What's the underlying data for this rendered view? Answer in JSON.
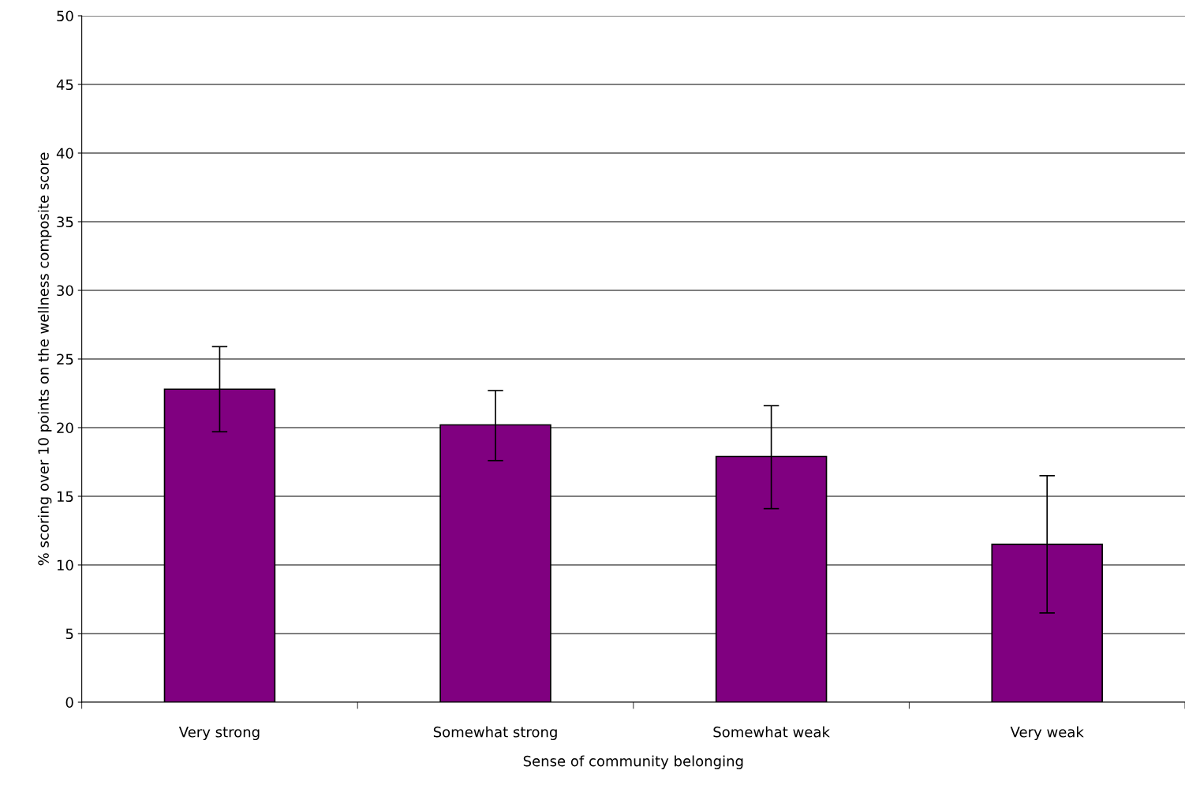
{
  "chart_data": {
    "type": "bar",
    "xlabel": "Sense of community belonging",
    "ylabel": "% scoring over 10 points on the wellness composite score",
    "categories": [
      "Very strong",
      "Somewhat strong",
      "Somewhat weak",
      "Very weak"
    ],
    "series": [
      {
        "color": "#800080",
        "values": [
          22.8,
          20.2,
          17.9,
          11.5
        ],
        "errors": [
          [
            19.7,
            25.9
          ],
          [
            17.6,
            22.7
          ],
          [
            14.1,
            21.6
          ],
          [
            6.5,
            16.5
          ]
        ]
      }
    ],
    "ylim": [
      0,
      50
    ],
    "yticks": [
      0,
      5,
      10,
      15,
      20,
      25,
      30,
      35,
      40,
      45,
      50
    ],
    "grid": "y"
  }
}
